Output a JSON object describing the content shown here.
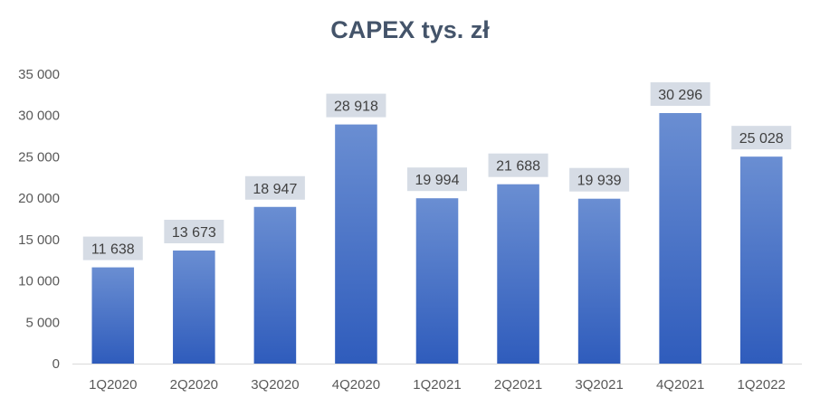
{
  "chart_data": {
    "type": "bar",
    "title": "CAPEX tys. zł",
    "categories": [
      "1Q2020",
      "2Q2020",
      "3Q2020",
      "4Q2020",
      "1Q2021",
      "2Q2021",
      "3Q2021",
      "4Q2021",
      "1Q2022"
    ],
    "values": [
      11638,
      13673,
      18947,
      28918,
      19994,
      21688,
      19939,
      30296,
      25028
    ],
    "data_labels": [
      "11 638",
      "13 673",
      "18 947",
      "28 918",
      "19 994",
      "21 688",
      "19 939",
      "30 296",
      "25 028"
    ],
    "yticks": [
      0,
      5000,
      10000,
      15000,
      20000,
      25000,
      30000,
      35000
    ],
    "ytick_labels": [
      "0",
      "5 000",
      "10 000",
      "15 000",
      "20 000",
      "25 000",
      "30 000",
      "35 000"
    ],
    "ylim": [
      0,
      35000
    ],
    "grid": false,
    "legend": "none",
    "colors": {
      "bar_top": "#6a8ed2",
      "bar_bottom": "#2f5cbc",
      "label_bg": "#d6dce5",
      "title": "#44546a"
    }
  }
}
